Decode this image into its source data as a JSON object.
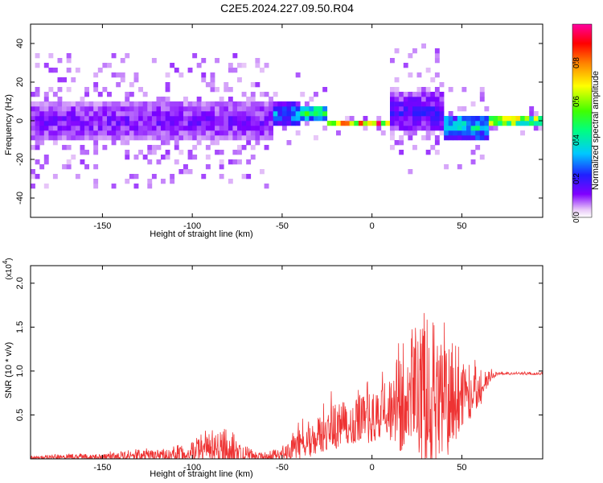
{
  "title": "C2E5.2024.227.09.50.R04",
  "colors": {
    "snr_line": "#ee3333",
    "frame": "#000000"
  },
  "chart_data": [
    {
      "type": "heatmap",
      "xlabel": "Height of straight line (km)",
      "ylabel": "Frequency (Hz)",
      "xlim": [
        -190,
        95
      ],
      "ylim": [
        -50,
        50
      ],
      "xticks": [
        -150,
        -100,
        -50,
        0,
        50
      ],
      "yticks": [
        -40,
        -20,
        0,
        20,
        40
      ],
      "colorbar": {
        "label": "Normalized spectral amplitude",
        "range": [
          0,
          1
        ],
        "ticks": [
          "0.0",
          "0.2",
          "0.4",
          "0.6",
          "0.8"
        ],
        "colormap": "rainbow"
      },
      "bands": [
        {
          "x": [
            -190,
            -55
          ],
          "center_hz": 0,
          "halfwidth_hz": 10,
          "amplitude": 0.15
        },
        {
          "x": [
            -55,
            -40
          ],
          "center_hz": 3,
          "halfwidth_hz": 6,
          "amplitude": 0.35
        },
        {
          "x": [
            -40,
            -25
          ],
          "center_hz": 4,
          "halfwidth_hz": 4,
          "amplitude": 0.55
        },
        {
          "x": [
            -25,
            10
          ],
          "center_hz": -1,
          "halfwidth_hz": 2,
          "amplitude": 0.9
        },
        {
          "x": [
            10,
            40
          ],
          "center_hz": 4,
          "halfwidth_hz": 10,
          "amplitude": 0.2
        },
        {
          "x": [
            40,
            65
          ],
          "center_hz": -3,
          "halfwidth_hz": 6,
          "amplitude": 0.45
        },
        {
          "x": [
            65,
            95
          ],
          "center_hz": 0,
          "halfwidth_hz": 2,
          "amplitude": 0.9
        }
      ]
    },
    {
      "type": "line",
      "xlabel": "Height of straight line (km)",
      "ylabel": "SNR (10 * v/v)",
      "y_multiplier": "(x10",
      "y_multiplier_exp": "4",
      "y_multiplier_close": ")",
      "xlim": [
        -190,
        95
      ],
      "ylim": [
        0,
        2.2
      ],
      "xticks": [
        -150,
        -100,
        -50,
        0,
        50
      ],
      "yticks": [
        "0.5",
        "1.0",
        "1.5",
        "2.0"
      ],
      "envelope": {
        "x": [
          -190,
          -150,
          -110,
          -100,
          -90,
          -80,
          -70,
          -60,
          -50,
          -40,
          -30,
          -20,
          -10,
          0,
          10,
          15,
          20,
          30,
          35,
          40,
          50,
          60,
          65,
          70,
          95
        ],
        "base": [
          0.01,
          0.02,
          0.04,
          0.06,
          0.1,
          0.08,
          0.03,
          0.02,
          0.04,
          0.15,
          0.25,
          0.35,
          0.4,
          0.45,
          0.5,
          0.55,
          0.55,
          0.55,
          0.55,
          0.55,
          0.65,
          0.75,
          0.92,
          0.97,
          0.97
        ],
        "amp": [
          0.03,
          0.05,
          0.1,
          0.15,
          0.25,
          0.3,
          0.1,
          0.05,
          0.1,
          0.25,
          0.35,
          0.4,
          0.4,
          0.45,
          0.55,
          0.75,
          0.9,
          1.1,
          1.2,
          1.0,
          0.6,
          0.3,
          0.1,
          0.02,
          0.02
        ]
      }
    }
  ]
}
